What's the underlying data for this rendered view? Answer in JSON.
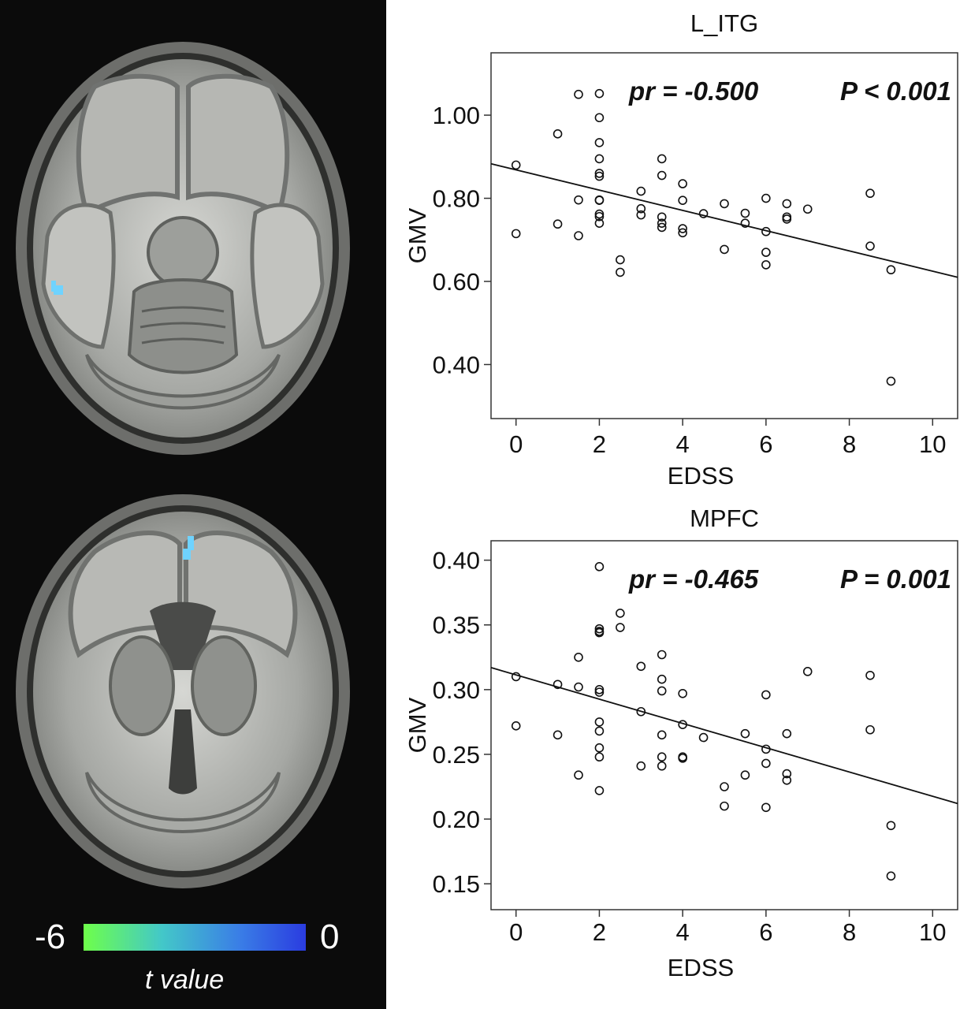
{
  "colorbar": {
    "min_label": "-6",
    "max_label": "0",
    "title": "t value",
    "colors": [
      "#6eff4a",
      "#43c8c8",
      "#3a7ee6",
      "#2a3ce0"
    ]
  },
  "brain_cluster_color": "#6fd3ff",
  "chart_data": [
    {
      "type": "scatter",
      "title": "L_ITG",
      "xlabel": "EDSS",
      "ylabel": "GMV",
      "annotation_pr": "pr = -0.500",
      "annotation_p": "P < 0.001",
      "xlim": [
        -0.6,
        10.6
      ],
      "ylim": [
        0.27,
        1.15
      ],
      "xticks": [
        0,
        2,
        4,
        6,
        8,
        10
      ],
      "xtick_labels": [
        "0",
        "2",
        "4",
        "6",
        "8",
        "10"
      ],
      "yticks": [
        0.4,
        0.6,
        0.8,
        1.0
      ],
      "ytick_labels": [
        "0.40",
        "0.60",
        "0.80",
        "1.00"
      ],
      "grid": false,
      "fit_line": {
        "x": [
          -0.6,
          10.6
        ],
        "y": [
          0.883,
          0.61
        ]
      },
      "points": {
        "x": [
          0,
          0,
          1,
          1,
          1.5,
          1.5,
          1.5,
          2,
          2,
          2,
          2,
          2,
          2,
          2,
          2,
          2,
          2,
          2,
          2.5,
          2.5,
          3,
          3,
          3,
          3.5,
          3.5,
          3.5,
          3.5,
          3.5,
          4,
          4,
          4,
          4,
          4.5,
          5,
          5,
          5.5,
          5.5,
          6,
          6,
          6,
          6,
          6.5,
          6.5,
          6.5,
          7,
          8.5,
          8.5,
          9,
          9
        ],
        "y": [
          0.88,
          0.715,
          0.955,
          0.738,
          1.05,
          0.796,
          0.71,
          1.052,
          0.994,
          0.934,
          0.895,
          0.86,
          0.853,
          0.795,
          0.762,
          0.756,
          0.74,
          0.796,
          0.652,
          0.622,
          0.817,
          0.775,
          0.76,
          0.895,
          0.855,
          0.755,
          0.74,
          0.73,
          0.835,
          0.795,
          0.727,
          0.717,
          0.763,
          0.787,
          0.677,
          0.764,
          0.74,
          0.8,
          0.72,
          0.67,
          0.64,
          0.787,
          0.755,
          0.75,
          0.774,
          0.812,
          0.685,
          0.628,
          0.36
        ]
      }
    },
    {
      "type": "scatter",
      "title": "MPFC",
      "xlabel": "EDSS",
      "ylabel": "GMV",
      "annotation_pr": "pr = -0.465",
      "annotation_p": "P = 0.001",
      "xlim": [
        -0.6,
        10.6
      ],
      "ylim": [
        0.13,
        0.415
      ],
      "xticks": [
        0,
        2,
        4,
        6,
        8,
        10
      ],
      "xtick_labels": [
        "0",
        "2",
        "4",
        "6",
        "8",
        "10"
      ],
      "yticks": [
        0.15,
        0.2,
        0.25,
        0.3,
        0.35,
        0.4
      ],
      "ytick_labels": [
        "0.15",
        "0.20",
        "0.25",
        "0.30",
        "0.35",
        "0.40"
      ],
      "grid": false,
      "fit_line": {
        "x": [
          -0.6,
          10.6
        ],
        "y": [
          0.317,
          0.212
        ]
      },
      "points": {
        "x": [
          0,
          0,
          1,
          1,
          1.5,
          1.5,
          1.5,
          2,
          2,
          2,
          2,
          2,
          2,
          2,
          2,
          2,
          2,
          2,
          2.5,
          2.5,
          3,
          3,
          3,
          3.5,
          3.5,
          3.5,
          3.5,
          3.5,
          3.5,
          4,
          4,
          4,
          4,
          4.5,
          5,
          5,
          5.5,
          5.5,
          6,
          6,
          6,
          6,
          6.5,
          6.5,
          6.5,
          7,
          8.5,
          8.5,
          9,
          9
        ],
        "y": [
          0.31,
          0.272,
          0.304,
          0.265,
          0.325,
          0.302,
          0.234,
          0.395,
          0.347,
          0.344,
          0.3,
          0.298,
          0.275,
          0.268,
          0.255,
          0.248,
          0.222,
          0.345,
          0.359,
          0.348,
          0.318,
          0.283,
          0.241,
          0.327,
          0.308,
          0.299,
          0.265,
          0.248,
          0.241,
          0.297,
          0.273,
          0.248,
          0.247,
          0.263,
          0.225,
          0.21,
          0.266,
          0.234,
          0.296,
          0.254,
          0.243,
          0.209,
          0.266,
          0.235,
          0.23,
          0.314,
          0.311,
          0.269,
          0.195,
          0.156
        ]
      }
    }
  ]
}
